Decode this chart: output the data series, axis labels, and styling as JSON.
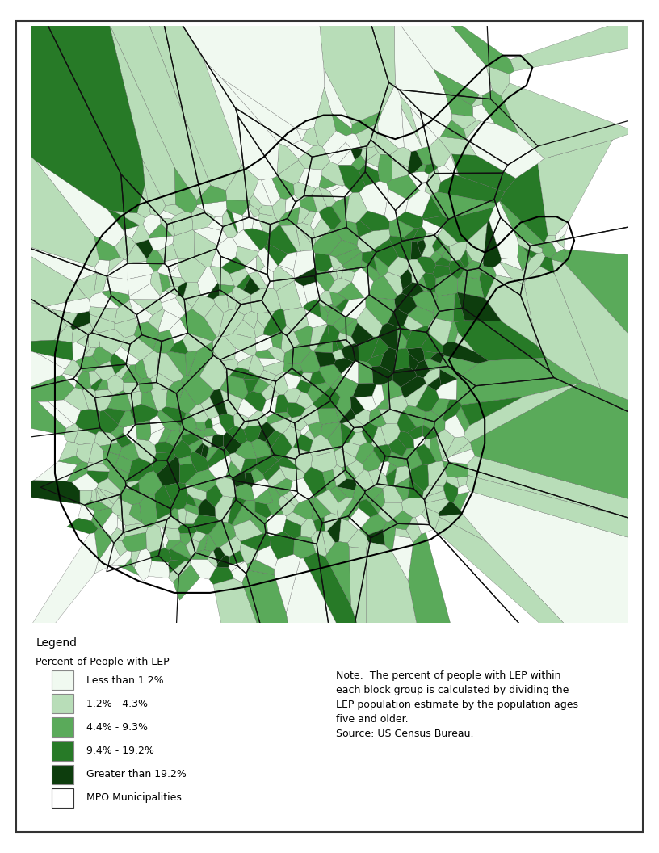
{
  "legend_title": "Legend",
  "legend_subtitle": "Percent of People with LEP",
  "legend_items": [
    {
      "label": "Less than 1.2%",
      "color": "#f0f9f0",
      "edgecolor": "#888888"
    },
    {
      "label": "1.2% - 4.3%",
      "color": "#b8ddb8",
      "edgecolor": "#888888"
    },
    {
      "label": "4.4% - 9.3%",
      "color": "#5aaa5a",
      "edgecolor": "#888888"
    },
    {
      "label": "9.4% - 19.2%",
      "color": "#277a27",
      "edgecolor": "#888888"
    },
    {
      "label": "Greater than 19.2%",
      "color": "#0d3d0d",
      "edgecolor": "#888888"
    },
    {
      "label": "MPO Municipalities",
      "color": "#ffffff",
      "edgecolor": "#333333"
    }
  ],
  "note_text": "Note:  The percent of people with LEP within\neach block group is calculated by dividing the\nLEP population estimate by the population ages\nfive and older.\nSource: US Census Bureau.",
  "background_color": "#ffffff",
  "border_color": "#333333",
  "map_colors": [
    "#f0f9f0",
    "#b8ddb8",
    "#5aaa5a",
    "#277a27",
    "#0d3d0d"
  ],
  "fig_width": 8.16,
  "fig_height": 10.56,
  "dpi": 100
}
